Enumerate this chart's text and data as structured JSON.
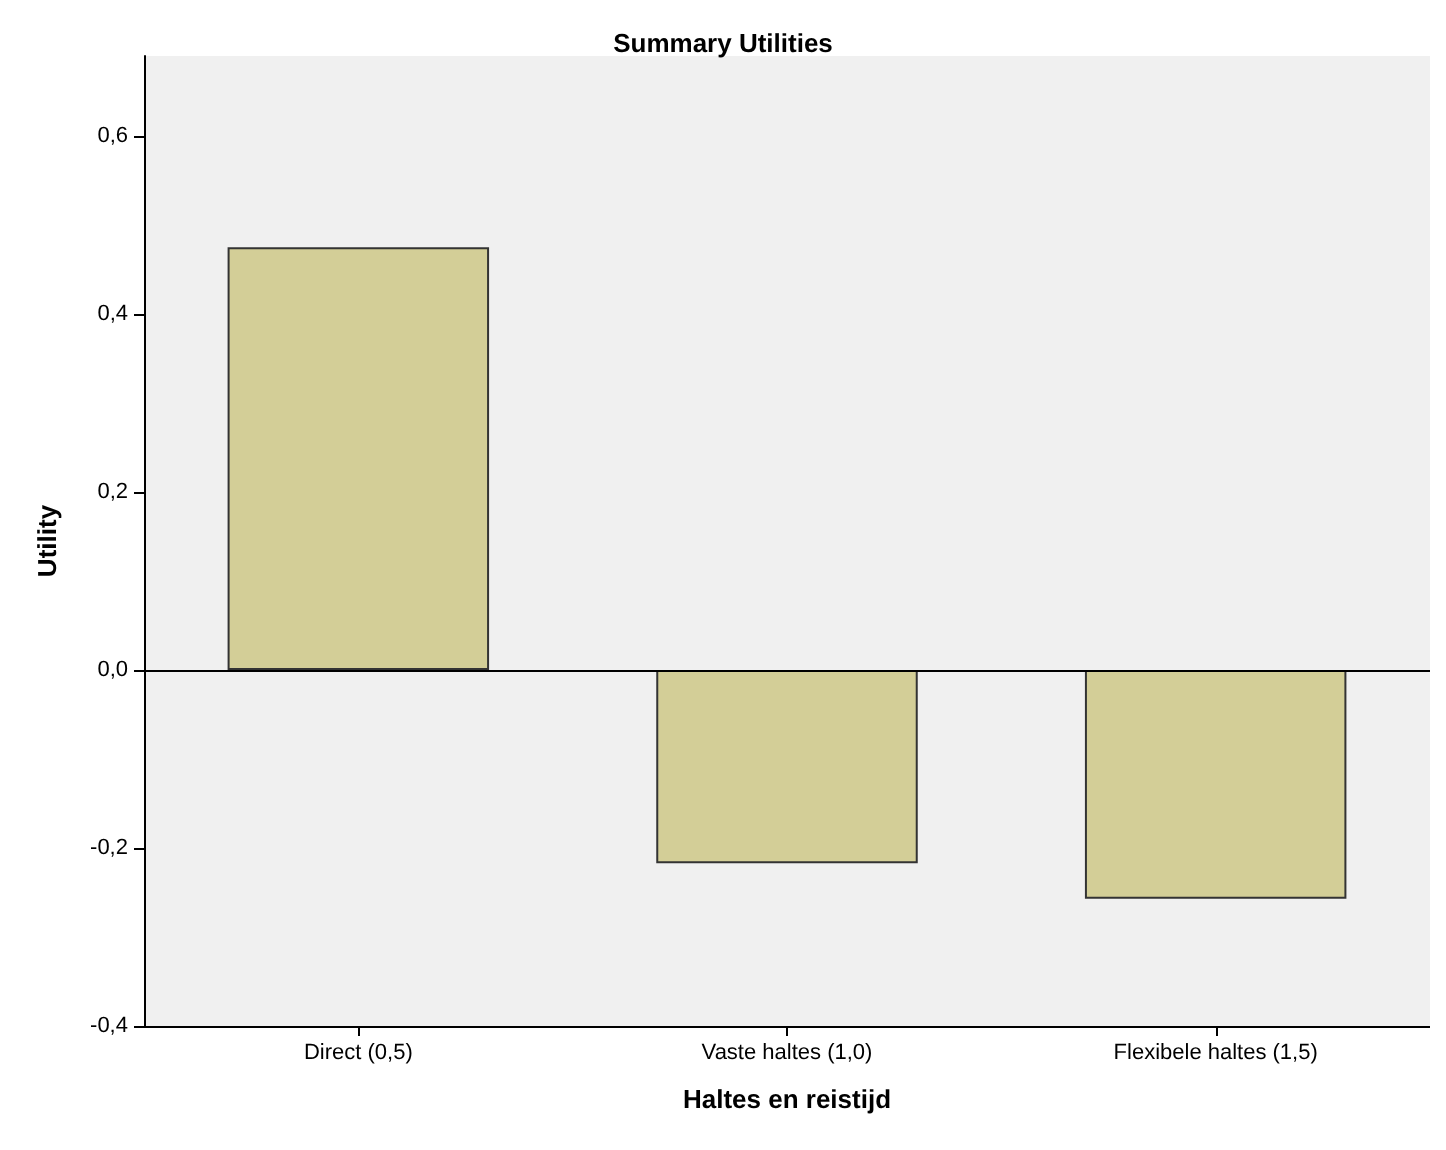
{
  "chart_data": {
    "type": "bar",
    "title": "Summary Utilities",
    "xlabel": "Haltes en reistijd",
    "ylabel": "Utility",
    "categories": [
      "Direct (0,5)",
      "Vaste haltes (1,0)",
      "Flexibele haltes (1,5)"
    ],
    "values": [
      0.475,
      -0.217,
      -0.257
    ],
    "color": "#d3ce97",
    "ylim": [
      -0.4,
      0.69
    ],
    "yticks": [
      {
        "value": -0.4,
        "label": "-0,4"
      },
      {
        "value": -0.2,
        "label": "-0,2"
      },
      {
        "value": 0,
        "label": "0,0"
      },
      {
        "value": 0.2,
        "label": "0,2"
      },
      {
        "value": 0.4,
        "label": "0,4"
      },
      {
        "value": 0.6,
        "label": "0,6"
      }
    ],
    "ref_lines": [
      {
        "axis": "y",
        "value": 0
      }
    ]
  }
}
